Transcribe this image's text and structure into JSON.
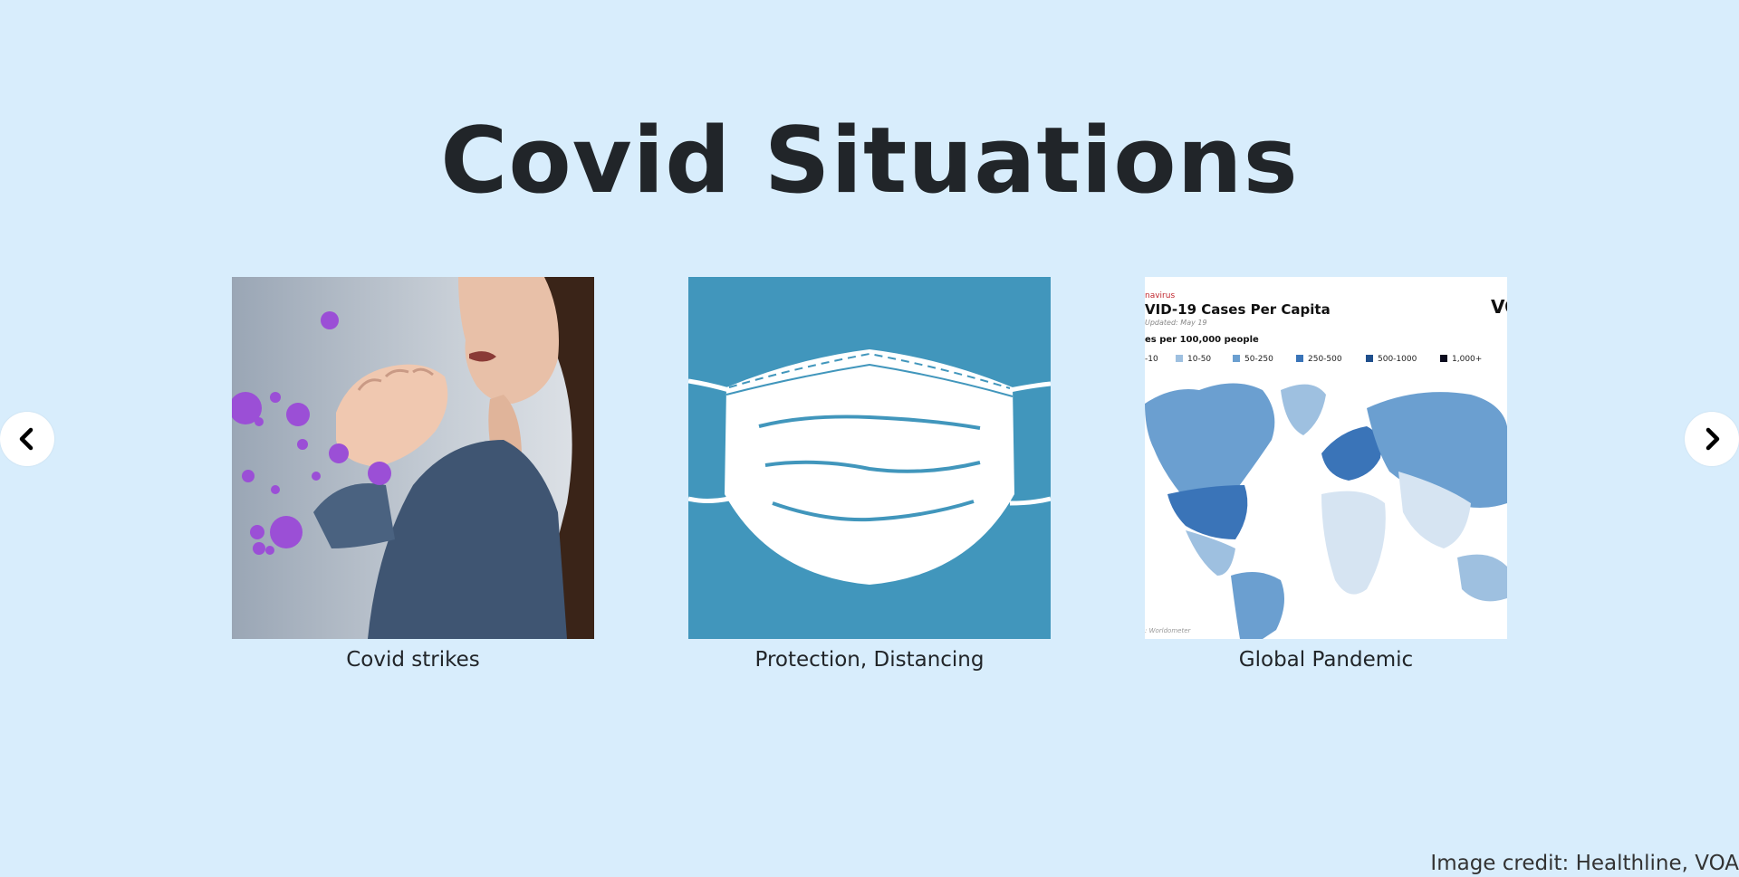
{
  "page": {
    "title": "Covid Situations"
  },
  "carousel": {
    "prev_icon": "chevron-left-icon",
    "next_icon": "chevron-right-icon",
    "cards": [
      {
        "caption": "Covid strikes",
        "image": "woman-coughing-virus-illustration"
      },
      {
        "caption": "Protection, Distancing",
        "image": "face-mask-illustration"
      },
      {
        "caption": "Global Pandemic",
        "image": "world-map-covid-cases",
        "map": {
          "kicker": "navirus",
          "title": "VID-19 Cases Per Capita",
          "updated": "Updated: May 19",
          "legend_title": "es per 100,000 people",
          "legend": [
            {
              "label": "-10",
              "color": "#d6e4f2"
            },
            {
              "label": "10-50",
              "color": "#9ec0e0"
            },
            {
              "label": "50-250",
              "color": "#6b9fd0"
            },
            {
              "label": "250-500",
              "color": "#3a74b8"
            },
            {
              "label": "500-1000",
              "color": "#1f4f8c"
            },
            {
              "label": "1,000+",
              "color": "#0b0b1e"
            }
          ],
          "brand": "VO",
          "source": ": Worldometer"
        }
      }
    ]
  },
  "footer": {
    "credit": "Image credit: Healthline, VOA"
  }
}
